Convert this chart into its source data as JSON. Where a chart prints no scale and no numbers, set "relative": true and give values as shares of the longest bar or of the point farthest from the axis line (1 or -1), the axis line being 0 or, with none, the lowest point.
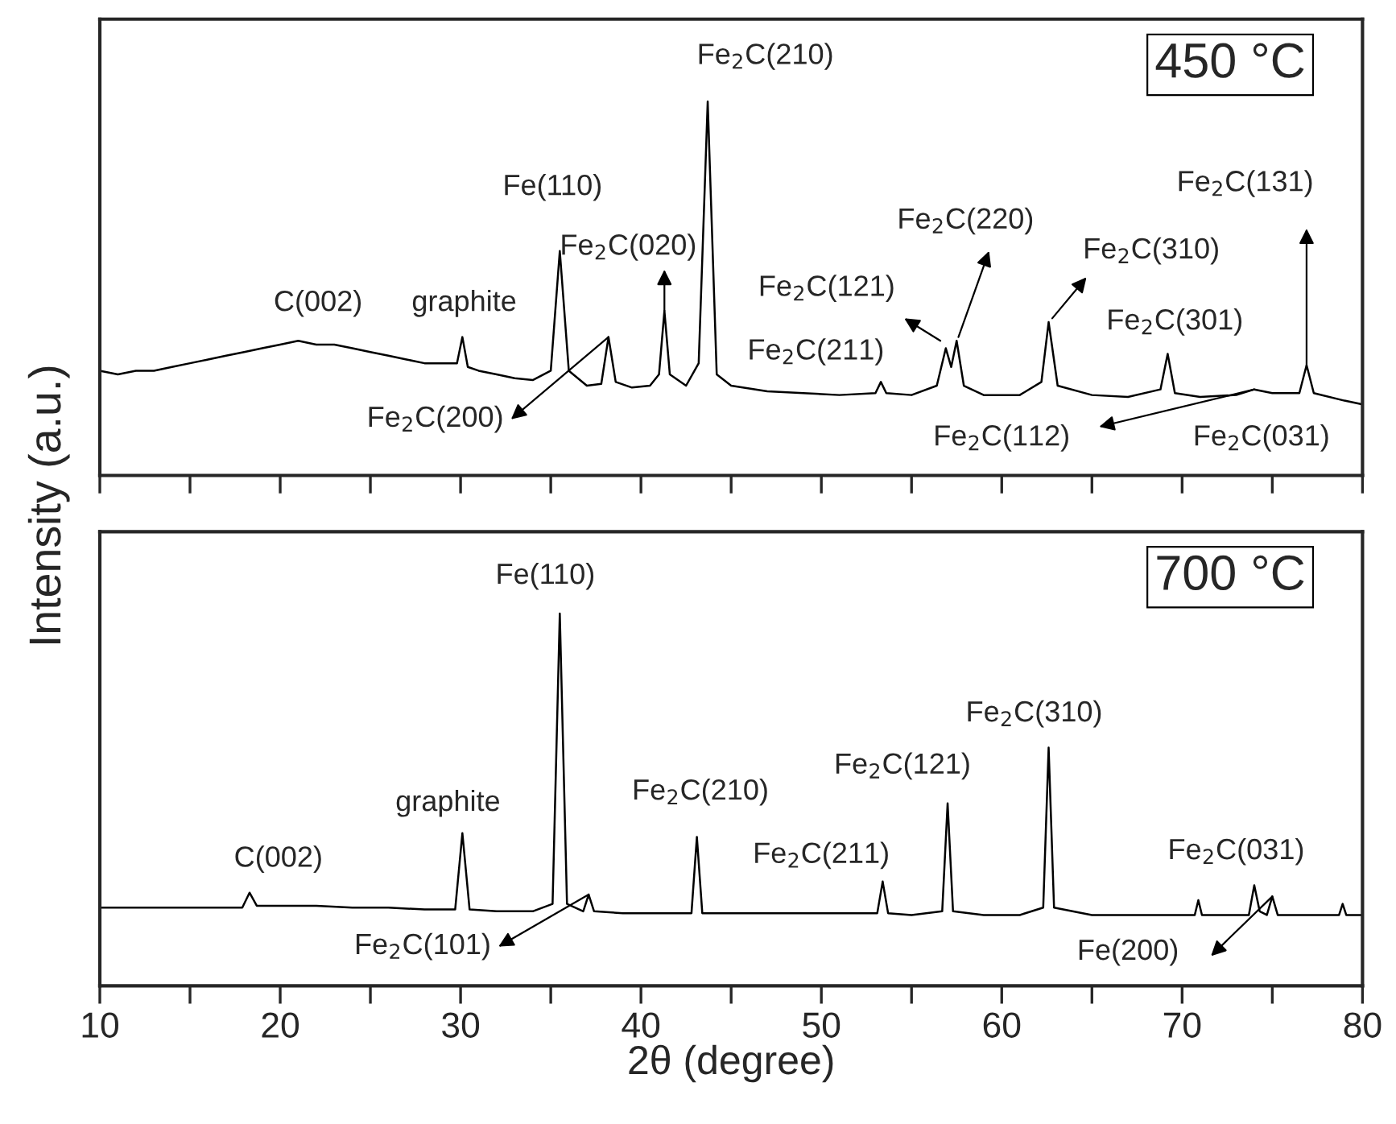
{
  "chart_data": [
    {
      "type": "line",
      "relative": true,
      "ylabel": "Intensity (a.u.)",
      "tick_labels": false,
      "xlim": [
        10,
        80
      ],
      "xticks": [
        {
          "value": 10,
          "label": null
        },
        {
          "value": 15,
          "label": null
        },
        {
          "value": 20,
          "label": null
        },
        {
          "value": 25,
          "label": null
        },
        {
          "value": 30,
          "label": null
        },
        {
          "value": 35,
          "label": null
        },
        {
          "value": 40,
          "label": null
        },
        {
          "value": 45,
          "label": null
        },
        {
          "value": 50,
          "label": null
        },
        {
          "value": 55,
          "label": null
        },
        {
          "value": 60,
          "label": null
        },
        {
          "value": 65,
          "label": null
        },
        {
          "value": 70,
          "label": null
        },
        {
          "value": 75,
          "label": null
        },
        {
          "value": 80,
          "label": null
        }
      ],
      "series": [
        {
          "color": "#000000",
          "x": [
            10,
            11,
            12,
            13,
            14,
            15,
            16,
            17,
            18,
            19,
            20,
            21,
            22,
            23,
            24,
            25,
            26,
            27,
            28,
            29,
            29.8,
            30.1,
            30.4,
            31,
            32,
            33,
            34,
            35.0,
            35.5,
            36.0,
            37,
            37.8,
            38.2,
            38.6,
            39.5,
            40.5,
            41.0,
            41.3,
            41.6,
            42.5,
            43.2,
            43.7,
            44.2,
            45,
            47,
            49,
            51,
            53.0,
            53.3,
            53.6,
            55,
            56.4,
            56.9,
            57.2,
            57.5,
            57.9,
            59,
            61,
            62.2,
            62.6,
            63.1,
            65,
            67,
            68.8,
            69.2,
            69.6,
            71,
            73,
            74.0,
            75,
            76.5,
            76.9,
            77.3,
            79,
            80
          ],
          "values": [
            0.28,
            0.27,
            0.28,
            0.28,
            0.29,
            0.3,
            0.31,
            0.32,
            0.33,
            0.34,
            0.35,
            0.36,
            0.35,
            0.35,
            0.34,
            0.33,
            0.32,
            0.31,
            0.3,
            0.3,
            0.3,
            0.37,
            0.29,
            0.28,
            0.27,
            0.26,
            0.255,
            0.28,
            0.6,
            0.28,
            0.24,
            0.245,
            0.37,
            0.25,
            0.235,
            0.24,
            0.27,
            0.44,
            0.27,
            0.24,
            0.3,
            1.0,
            0.27,
            0.24,
            0.225,
            0.22,
            0.215,
            0.22,
            0.25,
            0.22,
            0.215,
            0.24,
            0.34,
            0.29,
            0.36,
            0.24,
            0.215,
            0.215,
            0.25,
            0.41,
            0.24,
            0.215,
            0.21,
            0.23,
            0.325,
            0.22,
            0.21,
            0.215,
            0.23,
            0.22,
            0.22,
            0.295,
            0.22,
            0.2,
            0.19
          ]
        }
      ],
      "annotations": [
        {
          "text": "C(002)",
          "x": 21.5,
          "y": 0.36
        },
        {
          "text": "graphite",
          "x": 30.1,
          "y": 0.37
        },
        {
          "text": "Fe(110)",
          "x": 35.5,
          "y": 0.6
        },
        {
          "text": "Fe$_{2}$C(020)",
          "x": 41.3,
          "y": 0.44
        },
        {
          "text": "Fe$_{2}$C(210)",
          "x": 43.7,
          "y": 1.0
        },
        {
          "text": "Fe$_{2}$C(200)",
          "x": 38.2,
          "y": 0.37
        },
        {
          "text": "Fe$_{2}$C(211)",
          "x": 53.3,
          "y": 0.25
        },
        {
          "text": "Fe$_{2}$C(121)",
          "x": 56.9,
          "y": 0.34
        },
        {
          "text": "Fe$_{2}$C(220)",
          "x": 57.5,
          "y": 0.36
        },
        {
          "text": "Fe$_{2}$C(310)",
          "x": 62.6,
          "y": 0.41
        },
        {
          "text": "Fe$_{2}$C(301)",
          "x": 69.2,
          "y": 0.325
        },
        {
          "text": "Fe$_{2}$C(131)",
          "x": 76.9,
          "y": 0.295
        },
        {
          "text": "Fe$_{2}$C(112)",
          "x": 74.0,
          "y": 0.23
        },
        {
          "text": "Fe$_{2}$C(031)",
          "x": 78.5,
          "y": 0.21
        },
        "450 °C"
      ]
    },
    {
      "type": "line",
      "relative": true,
      "xlabel": "2θ (degree)",
      "tick_labels": "x",
      "xlim": [
        10,
        80
      ],
      "xticks": [
        10,
        {
          "value": 15,
          "label": null
        },
        20,
        {
          "value": 25,
          "label": null
        },
        30,
        {
          "value": 35,
          "label": null
        },
        40,
        {
          "value": 45,
          "label": null
        },
        50,
        {
          "value": 55,
          "label": null
        },
        60,
        {
          "value": 65,
          "label": null
        },
        70,
        {
          "value": 75,
          "label": null
        },
        80
      ],
      "series": [
        {
          "color": "#000000",
          "x": [
            10,
            12,
            14,
            16,
            17.9,
            18.3,
            18.7,
            20,
            22,
            24,
            26,
            28,
            29.7,
            30.1,
            30.5,
            32,
            34,
            35.1,
            35.5,
            35.9,
            36.8,
            37.1,
            37.4,
            39,
            41,
            42.8,
            43.1,
            43.4,
            45,
            48,
            51,
            53.1,
            53.4,
            53.7,
            55,
            56.7,
            57.0,
            57.3,
            59,
            61,
            62.3,
            62.6,
            62.9,
            65,
            67,
            70.7,
            70.9,
            71.1,
            73.7,
            74.0,
            74.3,
            74.7,
            75.0,
            75.3,
            77,
            78.7,
            78.9,
            79.1,
            80
          ],
          "values": [
            0.21,
            0.21,
            0.21,
            0.21,
            0.21,
            0.25,
            0.215,
            0.215,
            0.215,
            0.21,
            0.21,
            0.205,
            0.205,
            0.41,
            0.205,
            0.2,
            0.2,
            0.22,
            1.0,
            0.22,
            0.2,
            0.245,
            0.2,
            0.195,
            0.195,
            0.195,
            0.4,
            0.195,
            0.195,
            0.195,
            0.195,
            0.195,
            0.28,
            0.195,
            0.19,
            0.2,
            0.49,
            0.2,
            0.19,
            0.19,
            0.21,
            0.64,
            0.21,
            0.19,
            0.19,
            0.19,
            0.23,
            0.19,
            0.19,
            0.27,
            0.2,
            0.19,
            0.24,
            0.19,
            0.19,
            0.19,
            0.22,
            0.19,
            0.19
          ]
        }
      ],
      "annotations": [
        {
          "text": "C(002)",
          "x": 18.3,
          "y": 0.25
        },
        {
          "text": "graphite",
          "x": 30.1,
          "y": 0.41
        },
        {
          "text": "Fe(110)",
          "x": 35.5,
          "y": 1.0
        },
        {
          "text": "Fe$_{2}$C(210)",
          "x": 43.1,
          "y": 0.4
        },
        {
          "text": "Fe$_{2}$C(101)",
          "x": 37.1,
          "y": 0.245
        },
        {
          "text": "Fe$_{2}$C(211)",
          "x": 53.4,
          "y": 0.28
        },
        {
          "text": "Fe$_{2}$C(121)",
          "x": 57.0,
          "y": 0.49
        },
        {
          "text": "Fe$_{2}$C(310)",
          "x": 62.6,
          "y": 0.64
        },
        {
          "text": "Fe$_{2}$C(031)",
          "x": 74.0,
          "y": 0.27
        },
        {
          "text": "Fe(200)",
          "x": 75.0,
          "y": 0.24
        },
        "700 °C"
      ]
    }
  ]
}
